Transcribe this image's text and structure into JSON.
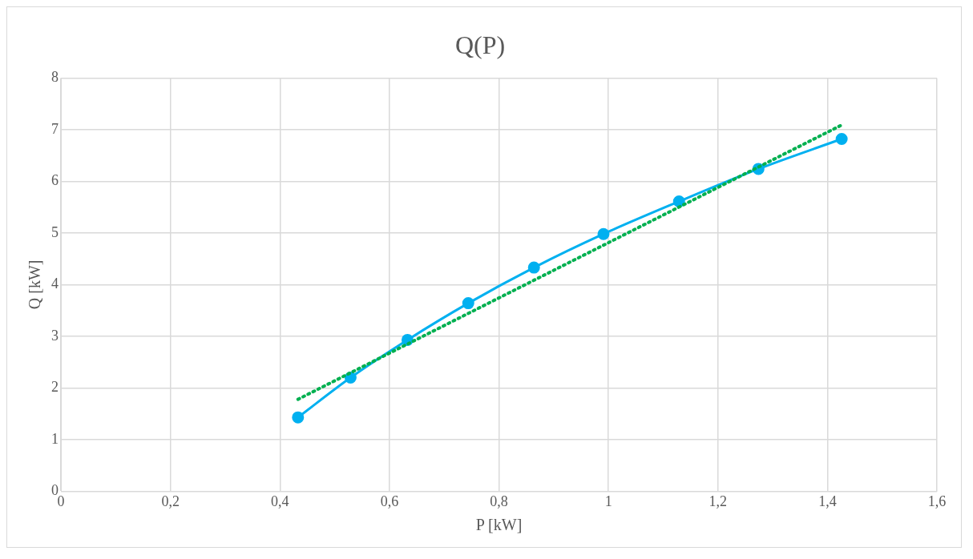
{
  "chart_data": {
    "type": "line",
    "title": "Q(P)",
    "xlabel": "P [kW]",
    "ylabel": "Q [kW]",
    "xlim": [
      0,
      1.6
    ],
    "xticks": [
      0,
      {
        "value": 0.2,
        "label": "0,2"
      },
      {
        "value": 0.4,
        "label": "0,4"
      },
      {
        "value": 0.6,
        "label": "0,6"
      },
      {
        "value": 0.8,
        "label": "0,8"
      },
      1,
      {
        "value": 1.2,
        "label": "1,2"
      },
      {
        "value": 1.4,
        "label": "1,4"
      },
      {
        "value": 1.6,
        "label": "1,6"
      }
    ],
    "ylim": [
      0,
      8
    ],
    "yticks": [
      0,
      1,
      2,
      3,
      4,
      5,
      6,
      7,
      8
    ],
    "grid": true,
    "series": [
      {
        "type": "line",
        "color": "#00b0f0",
        "marker": "circle",
        "line_style": "solid",
        "x": [
          0.433,
          0.529,
          0.633,
          0.744,
          0.864,
          0.991,
          1.129,
          1.274,
          1.426
        ],
        "values": [
          1.43,
          2.2,
          2.93,
          3.64,
          4.33,
          4.98,
          5.61,
          6.24,
          6.82
        ]
      },
      {
        "type": "line",
        "color": "#00b050",
        "marker": "none",
        "line_style": "dotted",
        "x": [
          0.433,
          1.426
        ],
        "values": [
          1.78,
          7.09
        ]
      }
    ]
  }
}
